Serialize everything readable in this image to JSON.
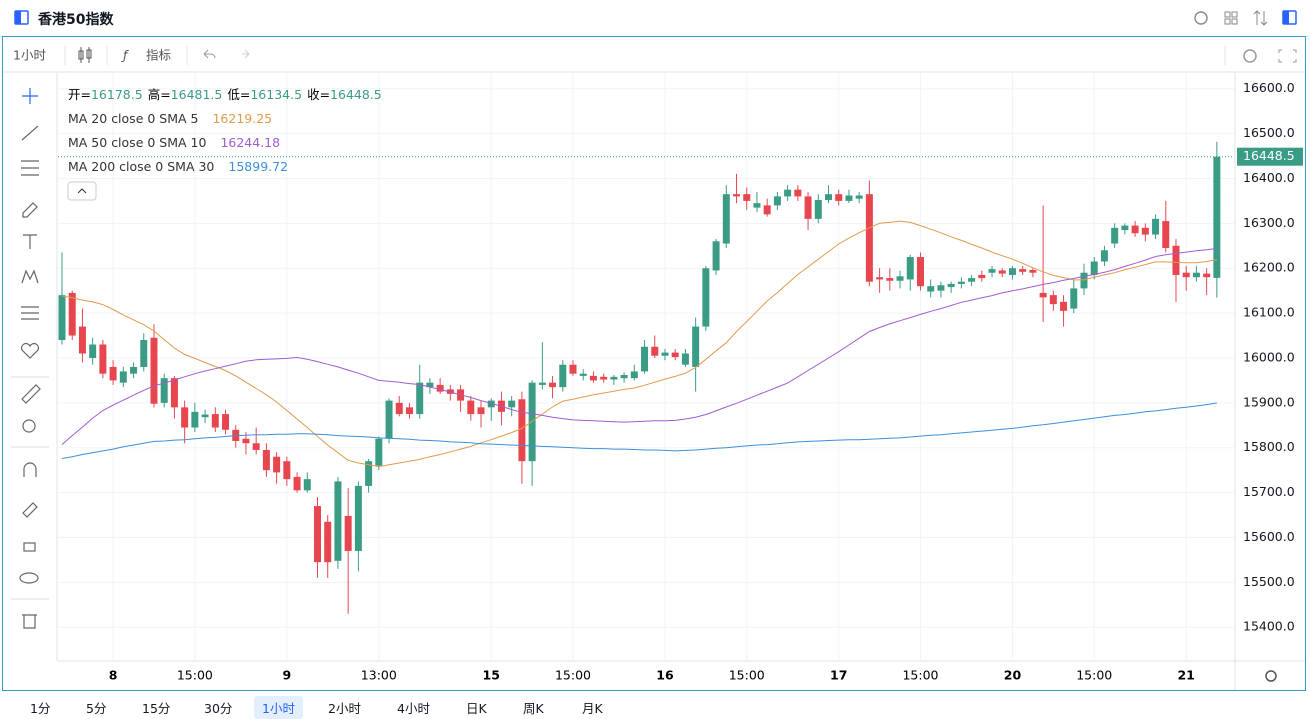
{
  "header": {
    "title": "香港50指数"
  },
  "toolbar": {
    "interval": "1小时",
    "indicators": "指标"
  },
  "timeframes": [
    "1分",
    "5分",
    "15分",
    "30分",
    "1小时",
    "2小时",
    "4小时",
    "日K",
    "周K",
    "月K"
  ],
  "active_timeframe": 4,
  "chart_data": {
    "type": "candlestick",
    "categories": [
      null,
      null,
      null,
      null,
      null,
      "8",
      null,
      null,
      null,
      null,
      null,
      null,
      null,
      "15:00",
      null,
      null,
      null,
      null,
      null,
      null,
      null,
      null,
      "9",
      null,
      null,
      null,
      null,
      null,
      null,
      null,
      null,
      "13:00",
      null,
      null,
      null,
      null,
      null,
      null,
      null,
      null,
      null,
      null,
      "15",
      null,
      null,
      null,
      null,
      null,
      null,
      null,
      "15:00",
      null,
      null,
      null,
      null,
      null,
      null,
      null,
      null,
      "16",
      null,
      null,
      null,
      null,
      null,
      null,
      null,
      "15:00",
      null,
      null,
      null,
      null,
      null,
      null,
      null,
      null,
      "17",
      null,
      null,
      null,
      null,
      null,
      null,
      null,
      "15:00",
      null,
      null,
      null,
      null,
      null,
      null,
      null,
      null,
      "20",
      null,
      null,
      null,
      null,
      null,
      null,
      null,
      "15:00",
      null,
      null,
      null,
      null,
      null,
      null,
      null,
      null,
      "21",
      null,
      null,
      null
    ],
    "open": [
      16040,
      16145,
      16070,
      16000,
      16030,
      15980,
      15945,
      15965,
      15980,
      16045,
      15900,
      15955,
      15890,
      15845,
      15868,
      15875,
      15875,
      15840,
      15820,
      15810,
      15795,
      15780,
      15770,
      15735,
      15705,
      15670,
      15635,
      15548,
      15648,
      15570,
      15715,
      15760,
      15820,
      15900,
      15890,
      15875,
      15935,
      15940,
      15930,
      15930,
      15905,
      15890,
      15890,
      15905,
      15890,
      15908,
      15770,
      15940,
      15945,
      15935,
      15985,
      15960,
      15960,
      15958,
      15952,
      15955,
      15955,
      15970,
      16025,
      16005,
      16012,
      15985,
      15980,
      16070,
      16195,
      16255,
      16365,
      16365,
      16335,
      16340,
      16340,
      16360,
      16375,
      16360,
      16310,
      16352,
      16365,
      16350,
      16355,
      16365,
      16180,
      16178,
      16172,
      16175,
      16225,
      16148,
      16150,
      16158,
      16165,
      16170,
      16185,
      16190,
      16195,
      16185,
      16198,
      16196,
      16145,
      16140,
      16125,
      16110,
      16155,
      16185,
      16215,
      16255,
      16285,
      16295,
      16290,
      16275,
      16305,
      16250,
      16190,
      16180,
      16188,
      16178.5
    ],
    "high": [
      16235,
      16150,
      16110,
      16045,
      16040,
      15995,
      15980,
      15990,
      16055,
      16075,
      15965,
      15960,
      15905,
      15900,
      15885,
      15890,
      15885,
      15850,
      15835,
      15845,
      15810,
      15790,
      15780,
      15745,
      15745,
      15690,
      15650,
      15735,
      15710,
      15725,
      15775,
      15825,
      15910,
      15915,
      15900,
      15985,
      15955,
      15955,
      15940,
      15940,
      15915,
      15905,
      15910,
      15925,
      15915,
      15925,
      15950,
      16035,
      15960,
      15995,
      15995,
      15975,
      15970,
      15965,
      15962,
      15968,
      15985,
      16040,
      16050,
      16020,
      16020,
      16020,
      16090,
      16205,
      16265,
      16385,
      16410,
      16380,
      16370,
      16355,
      16370,
      16385,
      16385,
      16370,
      16365,
      16385,
      16375,
      16375,
      16370,
      16395,
      16200,
      16200,
      16195,
      16230,
      16235,
      16175,
      16170,
      16170,
      16180,
      16185,
      16195,
      16205,
      16200,
      16205,
      16205,
      16200,
      16340,
      16150,
      16140,
      16175,
      16210,
      16225,
      16250,
      16300,
      16300,
      16305,
      16300,
      16320,
      16350,
      16265,
      16205,
      16205,
      16200,
      16481.5
    ],
    "low": [
      16030,
      16040,
      15990,
      15985,
      15955,
      15940,
      15935,
      15955,
      15970,
      15890,
      15890,
      15865,
      15810,
      15835,
      15855,
      15835,
      15830,
      15800,
      15785,
      15785,
      15735,
      15720,
      15715,
      15700,
      15700,
      15510,
      15510,
      15530,
      15430,
      15525,
      15700,
      15750,
      15810,
      15870,
      15865,
      15865,
      15920,
      15920,
      15905,
      15880,
      15860,
      15845,
      15860,
      15850,
      15870,
      15720,
      15715,
      15930,
      15910,
      15925,
      15960,
      15950,
      15945,
      15945,
      15940,
      15945,
      15950,
      15965,
      16000,
      15995,
      15995,
      15980,
      15925,
      16060,
      16185,
      16245,
      16345,
      16330,
      16325,
      16315,
      16330,
      16350,
      16350,
      16285,
      16300,
      16345,
      16340,
      16345,
      16345,
      16160,
      16145,
      16150,
      16155,
      16150,
      16150,
      16135,
      16135,
      16145,
      16155,
      16160,
      16170,
      16180,
      16180,
      16175,
      16185,
      16180,
      16080,
      16105,
      16070,
      16100,
      16140,
      16175,
      16205,
      16245,
      16275,
      16270,
      16260,
      16265,
      16235,
      16125,
      16150,
      16170,
      16140,
      16134.5
    ],
    "close": [
      16140,
      16050,
      16010,
      16030,
      15965,
      15950,
      15970,
      15980,
      16040,
      15898,
      15955,
      15890,
      15845,
      15880,
      15874,
      15845,
      15840,
      15815,
      15810,
      15795,
      15750,
      15745,
      15730,
      15705,
      15730,
      15545,
      15545,
      15725,
      15570,
      15715,
      15770,
      15820,
      15905,
      15875,
      15875,
      15945,
      15945,
      15925,
      15920,
      15905,
      15875,
      15875,
      15905,
      15880,
      15905,
      15770,
      15945,
      15945,
      15935,
      15985,
      15965,
      15965,
      15950,
      15952,
      15958,
      15962,
      15970,
      16025,
      16005,
      16012,
      16002,
      16010,
      16070,
      16200,
      16260,
      16365,
      16360,
      16350,
      16345,
      16320,
      16360,
      16375,
      16360,
      16310,
      16352,
      16365,
      16350,
      16362,
      16362,
      16170,
      16175,
      16172,
      16182,
      16225,
      16160,
      16160,
      16162,
      16165,
      16170,
      16178,
      16178,
      16198,
      16188,
      16200,
      16192,
      16190,
      16135,
      16120,
      16105,
      16155,
      16190,
      16215,
      16240,
      16290,
      16295,
      16278,
      16275,
      16310,
      16245,
      16185,
      16180,
      16190,
      16180,
      16448.5
    ],
    "up_color": "#3b9c85",
    "down_color": "#e8464e",
    "ylim": [
      15327,
      16635
    ],
    "yticks": [
      {
        "value": 15400,
        "label": "15400.0"
      },
      {
        "value": 15500,
        "label": "15500.0"
      },
      {
        "value": 15600,
        "label": "15600.0"
      },
      {
        "value": 15700,
        "label": "15700.0"
      },
      {
        "value": 15800,
        "label": "15800.0"
      },
      {
        "value": 15900,
        "label": "15900.0"
      },
      {
        "value": 16000,
        "label": "16000.0"
      },
      {
        "value": 16100,
        "label": "16100.0"
      },
      {
        "value": 16200,
        "label": "16200.0"
      },
      {
        "value": 16300,
        "label": "16300.0"
      },
      {
        "value": 16400,
        "label": "16400.0"
      },
      {
        "value": 16500,
        "label": "16500.0"
      },
      {
        "value": 16600,
        "label": "16600.0"
      }
    ],
    "grid": true,
    "ohlc_labels": [
      "开=",
      "高=",
      "低=",
      "收="
    ],
    "series": [
      {
        "name": "MA 20 close 0 SMA 5",
        "color": "#e29a4c",
        "values": [
          16138,
          16134,
          16129,
          16125,
          16119,
          16108,
          16096,
          16085,
          16074,
          16060,
          16041,
          16022,
          16008,
          15999,
          15990,
          15981,
          15972,
          15960,
          15946,
          15932,
          15918,
          15902,
          15883,
          15864,
          15845,
          15825,
          15806,
          15789,
          15772,
          15766,
          15762,
          15758,
          15762,
          15766,
          15770,
          15774,
          15780,
          15785,
          15791,
          15797,
          15803,
          15811,
          15818,
          15826,
          15834,
          15843,
          15859,
          15875,
          15891,
          15904,
          15908,
          15913,
          15918,
          15922,
          15926,
          15930,
          15933,
          15939,
          15946,
          15953,
          15959,
          15966,
          15979,
          15997,
          16016,
          16034,
          16059,
          16081,
          16104,
          16127,
          16146,
          16166,
          16186,
          16203,
          16220,
          16237,
          16254,
          16267,
          16279,
          16290,
          16300,
          16302,
          16305,
          16302,
          16295,
          16287,
          16279,
          16270,
          16262,
          16253,
          16245,
          16236,
          16228,
          16220,
          16211,
          16201,
          16192,
          16184,
          16179,
          16174,
          16174,
          16180,
          16185,
          16190,
          16197,
          16202,
          16208,
          16214,
          16214,
          16213,
          16212,
          16212,
          16215,
          16219.25
        ]
      },
      {
        "name": "MA 50 close 0 SMA 10",
        "color": "#a35cd0",
        "values": [
          15807,
          15827,
          15846,
          15866,
          15883,
          15895,
          15906,
          15917,
          15928,
          15938,
          15944,
          15951,
          15958,
          15965,
          15971,
          15976,
          15982,
          15987,
          15993,
          15996,
          15997,
          15998,
          15999,
          16001,
          15997,
          15992,
          15986,
          15980,
          15973,
          15966,
          15958,
          15950,
          15948,
          15946,
          15943,
          15941,
          15935,
          15930,
          15924,
          15918,
          15912,
          15905,
          15899,
          15892,
          15885,
          15879,
          15876,
          15872,
          15868,
          15865,
          15862,
          15861,
          15860,
          15859,
          15858,
          15857,
          15858,
          15859,
          15860,
          15860,
          15861,
          15864,
          15868,
          15874,
          15882,
          15891,
          15899,
          15908,
          15917,
          15926,
          15935,
          15944,
          15958,
          15972,
          15986,
          16000,
          16014,
          16029,
          16044,
          16059,
          16068,
          16076,
          16083,
          16090,
          16097,
          16104,
          16110,
          16117,
          16124,
          16129,
          16134,
          16139,
          16145,
          16150,
          16154,
          16159,
          16164,
          16168,
          16173,
          16177,
          16182,
          16186,
          16191,
          16197,
          16204,
          16211,
          16218,
          16226,
          16230,
          16233,
          16236,
          16239,
          16241,
          16244.18
        ]
      },
      {
        "name": "MA 200 close 0 SMA 30",
        "color": "#3d8fdb",
        "values": [
          15776,
          15780,
          15785,
          15789,
          15793,
          15797,
          15802,
          15806,
          15810,
          15814,
          15815,
          15817,
          15818,
          15820,
          15822,
          15823,
          15825,
          15827,
          15828,
          15829,
          15829,
          15830,
          15830,
          15831,
          15831,
          15830,
          15829,
          15827,
          15826,
          15825,
          15824,
          15822,
          15821,
          15820,
          15819,
          15817,
          15816,
          15815,
          15813,
          15812,
          15811,
          15809,
          15808,
          15807,
          15806,
          15805,
          15804,
          15803,
          15802,
          15801,
          15800,
          15799,
          15798,
          15798,
          15797,
          15797,
          15796,
          15795,
          15795,
          15794,
          15793,
          15794,
          15795,
          15797,
          15799,
          15800,
          15802,
          15804,
          15806,
          15807,
          15809,
          15811,
          15813,
          15814,
          15815,
          15816,
          15817,
          15818,
          15818,
          15819,
          15820,
          15821,
          15822,
          15824,
          15826,
          15828,
          15829,
          15831,
          15833,
          15835,
          15837,
          15839,
          15841,
          15843,
          15846,
          15849,
          15851,
          15854,
          15857,
          15860,
          15863,
          15866,
          15869,
          15872,
          15874,
          15877,
          15880,
          15882,
          15885,
          15888,
          15890,
          15893,
          15896,
          15899.72
        ]
      }
    ]
  }
}
